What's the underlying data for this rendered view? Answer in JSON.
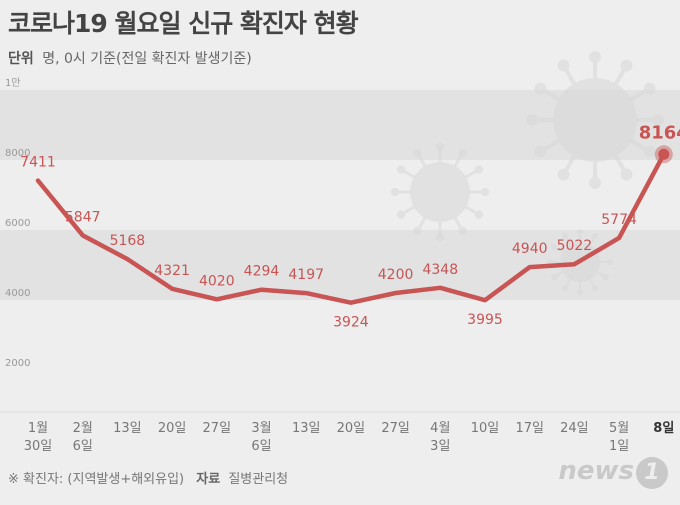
{
  "header": {
    "title": "코로나19 월요일 신규 확진자 현황",
    "unit_label": "단위",
    "unit_text": "명, 0시 기준(전일 확진자 발생기준)"
  },
  "footer": {
    "note": "※ 확진자: (지역발생+해외유입)",
    "source_label": "자료",
    "source": "질병관리청"
  },
  "logo": {
    "text": "news",
    "mark": "1"
  },
  "colors": {
    "line": "#c85454",
    "label": "#c85454",
    "band": "#e2e2e2",
    "background": "#eeeeee"
  },
  "chart_data": {
    "type": "line",
    "title": "코로나19 월요일 신규 확진자 현황",
    "ylim": [
      1000,
      10000
    ],
    "y_ticks": [
      {
        "value": 10000,
        "label": "1만"
      },
      {
        "value": 8000,
        "label": "8000"
      },
      {
        "value": 6000,
        "label": "6000"
      },
      {
        "value": 4000,
        "label": "4000"
      },
      {
        "value": 2000,
        "label": "2000"
      }
    ],
    "categories": [
      [
        "1월",
        "30일"
      ],
      [
        "2월",
        "6일"
      ],
      [
        "13일"
      ],
      [
        "20일"
      ],
      [
        "27일"
      ],
      [
        "3월",
        "6일"
      ],
      [
        "13일"
      ],
      [
        "20일"
      ],
      [
        "27일"
      ],
      [
        "4월",
        "3일"
      ],
      [
        "10일"
      ],
      [
        "17일"
      ],
      [
        "24일"
      ],
      [
        "5월",
        "1일"
      ],
      [
        "8일"
      ]
    ],
    "values": [
      7411,
      5847,
      5168,
      4321,
      4020,
      4294,
      4197,
      3924,
      4200,
      4348,
      3995,
      4940,
      5022,
      5774,
      8164
    ],
    "grid": "alternating bands",
    "legend": "none"
  }
}
